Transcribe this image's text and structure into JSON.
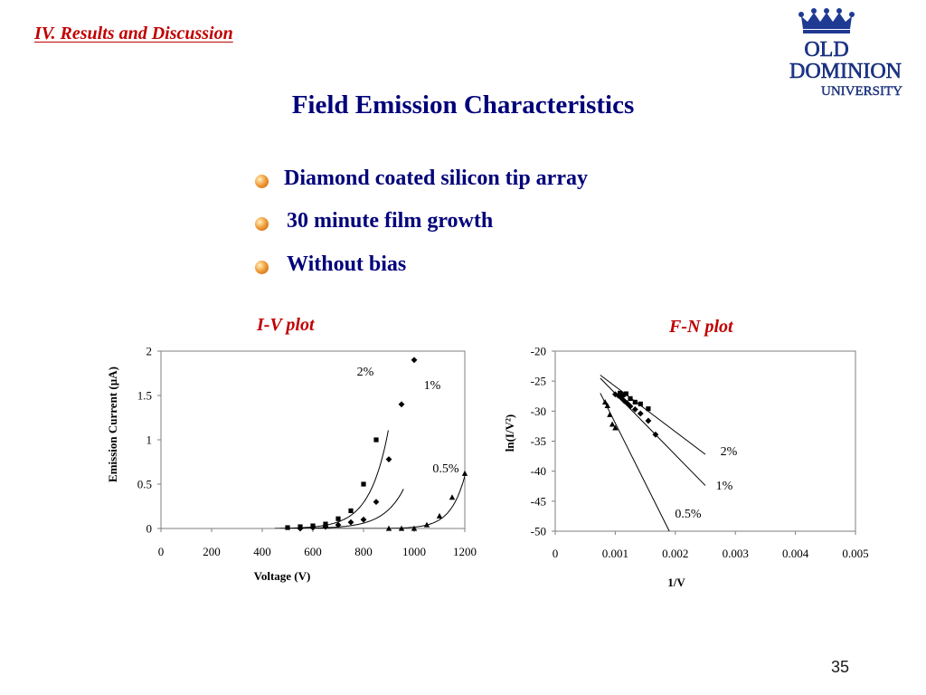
{
  "slide": {
    "section_title": "IV. Results and Discussion",
    "title": "Field Emission Characteristics",
    "bullets": [
      "Diamond coated  silicon tip array",
      "30 minute film growth",
      "Without bias"
    ],
    "page_number": "35",
    "logo": {
      "line1": "OLD",
      "line2": "DOMINION",
      "line3": "UNIVERSITY",
      "icon": "crown-icon"
    },
    "colors": {
      "section": "#c00000",
      "title": "#00007a",
      "plot_title": "#c00000"
    }
  },
  "chart_data": [
    {
      "type": "scatter",
      "title": "I-V plot",
      "xlabel": "Voltage (V)",
      "ylabel": "Emission Current (µA)",
      "xlim": [
        0,
        1200
      ],
      "ylim": [
        0,
        2
      ],
      "xticks": [
        "0",
        "200",
        "400",
        "600",
        "800",
        "1000",
        "1200"
      ],
      "yticks": [
        "0",
        "0.5",
        "1",
        "1.5",
        "2"
      ],
      "series": [
        {
          "name": "2%",
          "marker": "square",
          "x": [
            500,
            550,
            600,
            650,
            700,
            750,
            800,
            850
          ],
          "y": [
            0.01,
            0.02,
            0.03,
            0.05,
            0.11,
            0.2,
            0.5,
            1.0
          ]
        },
        {
          "name": "1%",
          "marker": "diamond",
          "x": [
            550,
            600,
            650,
            700,
            750,
            800,
            850,
            900,
            950,
            1000
          ],
          "y": [
            0.0,
            0.01,
            0.02,
            0.04,
            0.07,
            0.1,
            0.3,
            0.78,
            1.4,
            1.9
          ]
        },
        {
          "name": "0.5%",
          "marker": "triangle",
          "x": [
            900,
            950,
            1000,
            1050,
            1100,
            1150,
            1200
          ],
          "y": [
            0.0,
            0.0,
            0.0,
            0.04,
            0.14,
            0.35,
            0.62
          ]
        }
      ]
    },
    {
      "type": "scatter",
      "title": "F-N plot",
      "xlabel": "1/V",
      "ylabel": "ln(I/V²)",
      "xlim": [
        0,
        0.005
      ],
      "ylim": [
        -50,
        -20
      ],
      "xticks": [
        "0",
        "0.001",
        "0.002",
        "0.003",
        "0.004",
        "0.005"
      ],
      "yticks": [
        "-20",
        "-25",
        "-30",
        "-35",
        "-40",
        "-45",
        "-50"
      ],
      "series": [
        {
          "name": "2%",
          "marker": "square",
          "x": [
            0.00108,
            0.00113,
            0.00118,
            0.00125,
            0.00133,
            0.00142,
            0.00155
          ],
          "y": [
            -27.0,
            -27.3,
            -27.1,
            -27.9,
            -28.5,
            -28.8,
            -29.6
          ],
          "fit": [
            [
              0.00075,
              -24.0
            ],
            [
              0.0025,
              -37.2
            ]
          ]
        },
        {
          "name": "1%",
          "marker": "diamond",
          "x": [
            0.001,
            0.00105,
            0.0011,
            0.00115,
            0.0012,
            0.00125,
            0.00133,
            0.00142,
            0.00155,
            0.00167
          ],
          "y": [
            -27.2,
            -27.4,
            -27.8,
            -28.3,
            -28.7,
            -29.2,
            -29.7,
            -30.4,
            -31.6,
            -33.9
          ],
          "fit": [
            [
              0.00075,
              -24.5
            ],
            [
              0.0025,
              -42.4
            ]
          ]
        },
        {
          "name": "0.5%",
          "marker": "triangle",
          "x": [
            0.00083,
            0.00087,
            0.00091,
            0.00095,
            0.001
          ],
          "y": [
            -28.5,
            -29.1,
            -30.6,
            -32.2,
            -32.8
          ],
          "fit": [
            [
              0.00075,
              -27.0
            ],
            [
              0.0019,
              -50.0
            ]
          ]
        }
      ]
    }
  ]
}
